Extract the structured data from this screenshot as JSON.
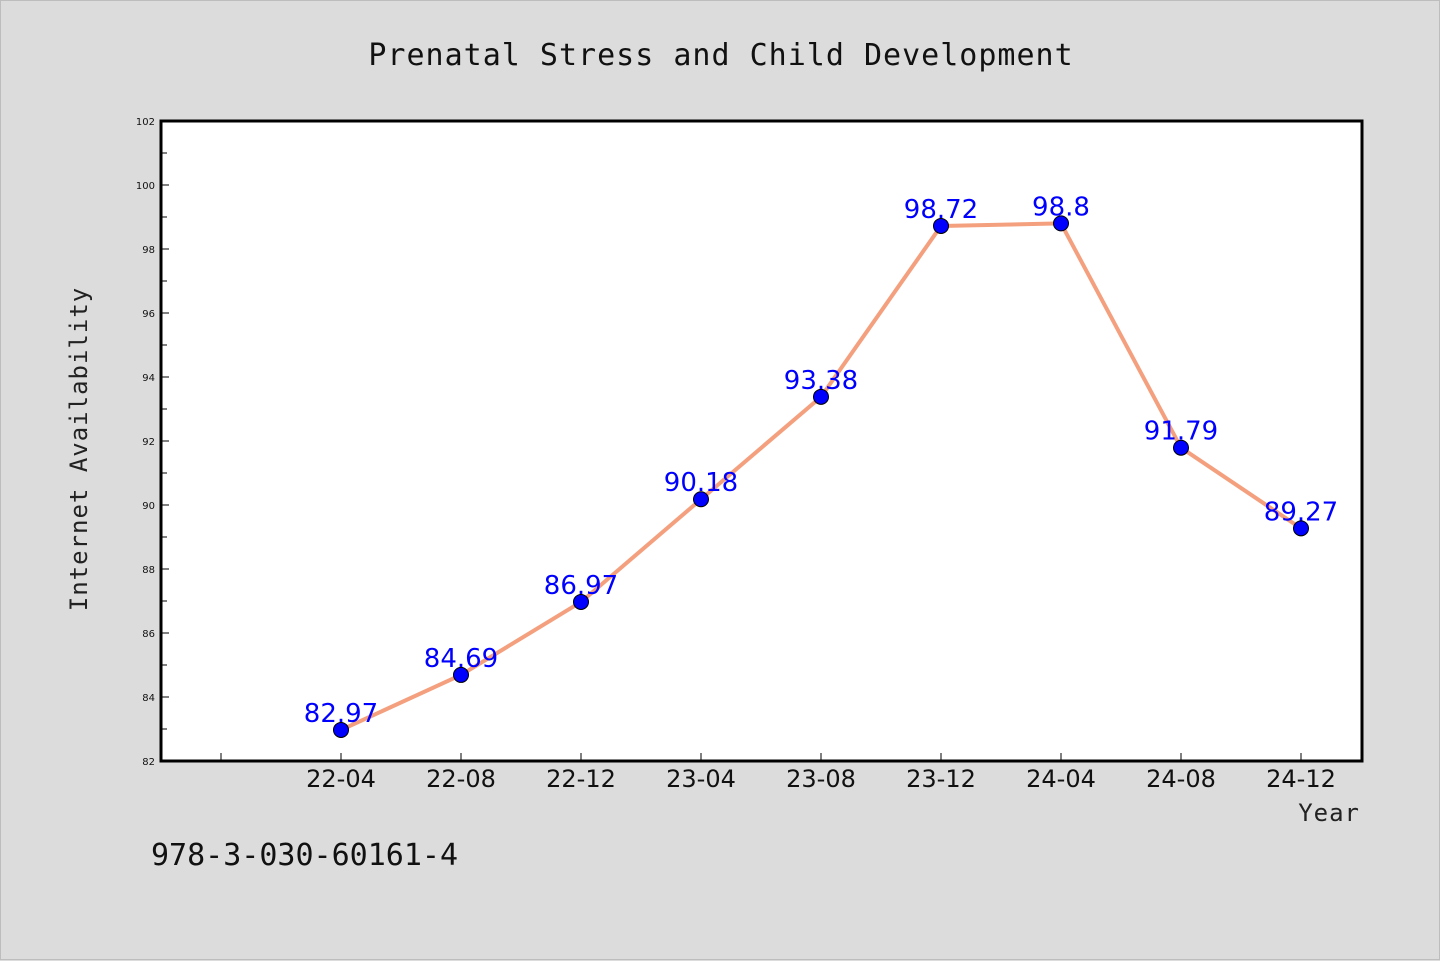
{
  "chart_data": {
    "type": "line",
    "title": "Prenatal Stress and Child Development",
    "xlabel": "Year",
    "ylabel": "Internet Availability",
    "categories": [
      "22-04",
      "22-08",
      "22-12",
      "23-04",
      "23-08",
      "23-12",
      "24-04",
      "24-08",
      "24-12"
    ],
    "series": [
      {
        "values": [
          82.97,
          84.69,
          86.97,
          90.18,
          93.38,
          98.72,
          98.8,
          91.79,
          89.27
        ],
        "labels": [
          "82.97",
          "84.69",
          "86.97",
          "90.18",
          "93.38",
          "98.72",
          "98.8",
          "91.79",
          "89.27"
        ],
        "line_color": "#f4a07e",
        "marker_color": "#0000ff"
      }
    ],
    "ylim": [
      82,
      102
    ],
    "yticks": [
      82,
      84,
      86,
      88,
      90,
      92,
      94,
      96,
      98,
      100,
      102
    ],
    "grid": false,
    "legend": "none"
  },
  "footer": {
    "isbn": "978-3-030-60161-4"
  }
}
